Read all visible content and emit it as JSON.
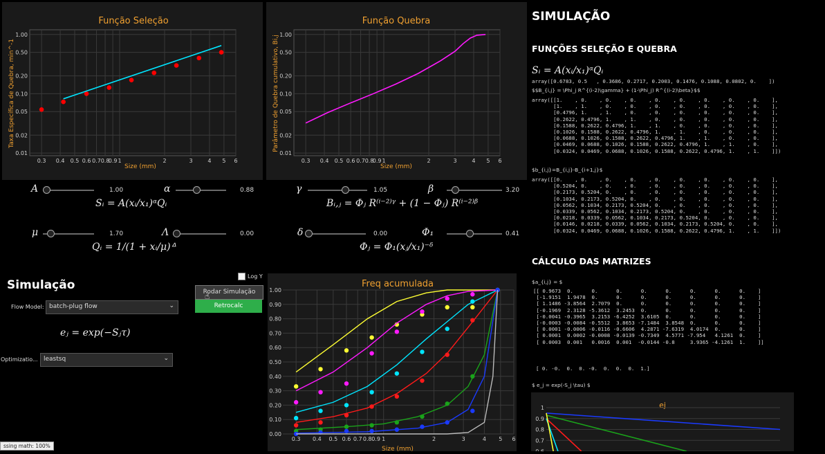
{
  "selection_panel": {
    "title": "Função Seleção",
    "xlabel": "Size (mm)",
    "ylabel": "Taxa Específica de Quebra, min^-1"
  },
  "breakage_panel": {
    "title": "Função Quebra",
    "xlabel": "Size (mm)",
    "ylabel": "Parâmetro de Quebra cumulativo, Bi,j"
  },
  "log_ticks_x": [
    "0.3",
    "0.4",
    "0.5",
    "0.6",
    "0.7",
    "0.8",
    "0.9",
    "1",
    "2",
    "3",
    "4",
    "5",
    "6"
  ],
  "log_ticks_y": [
    "1.00",
    "0.50",
    "0.20",
    "0.10",
    "0.05",
    "0.02",
    "0.01"
  ],
  "sliders": [
    {
      "label": "A",
      "value": "1.00",
      "pos": 0.0
    },
    {
      "label": "α",
      "value": "0.88",
      "pos": 0.4
    },
    {
      "label": "γ",
      "value": "1.05",
      "pos": 0.65
    },
    {
      "label": "β",
      "value": "3.20",
      "pos": 0.1
    },
    {
      "label": "μ",
      "value": "1.70",
      "pos": 0.1
    },
    {
      "label": "Λ",
      "value": "0.00",
      "pos": 0.0
    },
    {
      "label": "δ",
      "value": "0.00",
      "pos": 0.0
    },
    {
      "label": "Φ₁",
      "value": "0.41",
      "pos": 0.4
    }
  ],
  "formulas": {
    "s_i": "Sᵢ = A(xᵢ/x₁)ᵅQᵢ",
    "b_ij": "Bᵢ,ⱼ = Φⱼ R⁽ⁱ⁻²⁾ᵞ + (1 − Φⱼ) R⁽ⁱ⁻²⁾ᵝ",
    "q_i": "Qᵢ = 1/(1 + xᵢ/μ)ᐞ",
    "phi_j": "Φⱼ = Φ₁(xⱼ/x₁)⁻ᵟ",
    "e_j": "eⱼ = exp(−Sⱼτ)"
  },
  "simulation": {
    "title": "Simulação",
    "logy_label": "Log Y",
    "run_button": "Rodar Simulação",
    "retro_button": "Retrocalc",
    "flow_label": "Flow Model:",
    "flow_value": "batch-plug flow",
    "opt_label": "Optimizatio...",
    "opt_value": "leastsq",
    "status": "ssing math: 100%"
  },
  "freq_panel": {
    "title": "Freq acumulada",
    "xlabel": "Size (mm)",
    "yticks": [
      "1.00",
      "0.90",
      "0.80",
      "0.70",
      "0.60",
      "0.50",
      "0.40",
      "0.30",
      "0.20",
      "0.10",
      "0.00"
    ]
  },
  "right": {
    "h1": "SIMULAÇÃO",
    "h2": "FUNÇÕES SELEÇÃO E QUEBRA",
    "s_formula": "Sᵢ = A(xᵢ/x₁)ᵅQᵢ",
    "s_array": "array([0.6783, 0.5   , 0.3686, 0.2717, 0.2003, 0.1476, 0.1088, 0.0802, 0.    ])",
    "b_latex": "$$B_{i,j} = \\Phi_j R^{(i-2)\\gamma} + (1-\\Phi_j) R^{(i-2)\\beta}$$",
    "b_array": "array([[1.    , 0.    , 0.    , 0.    , 0.    , 0.    , 0.    , 0.    , 0.    ],\n       [1.    , 1.    , 0.    , 0.    , 0.    , 0.    , 0.    , 0.    , 0.    ],\n       [0.4796, 1.    , 1.    , 0.    , 0.    , 0.    , 0.    , 0.    , 0.    ],\n       [0.2622, 0.4796, 1.    , 1.    , 0.    , 0.    , 0.    , 0.    , 0.    ],\n       [0.1588, 0.2622, 0.4796, 1.    , 1.    , 0.    , 0.    , 0.    , 0.    ],\n       [0.1026, 0.1588, 0.2622, 0.4796, 1.    , 1.    , 0.    , 0.    , 0.    ],\n       [0.0688, 0.1026, 0.1588, 0.2622, 0.4796, 1.    , 1.    , 0.    , 0.    ],\n       [0.0469, 0.0688, 0.1026, 0.1588, 0.2622, 0.4796, 1.    , 1.    , 0.    ],\n       [0.0324, 0.0469, 0.0688, 0.1026, 0.1588, 0.2622, 0.4796, 1.    , 1.    ]])",
    "bb_latex": "$b_{i,j}=B_{i,j}-B_{i+1,j}$",
    "bb_array": "array([[0.    , 0.    , 0.    , 0.    , 0.    , 0.    , 0.    , 0.    , 0.    ],\n       [0.5204, 0.    , 0.    , 0.    , 0.    , 0.    , 0.    , 0.    , 0.    ],\n       [0.2173, 0.5204, 0.    , 0.    , 0.    , 0.    , 0.    , 0.    , 0.    ],\n       [0.1034, 0.2173, 0.5204, 0.    , 0.    , 0.    , 0.    , 0.    , 0.    ],\n       [0.0562, 0.1034, 0.2173, 0.5204, 0.    , 0.    , 0.    , 0.    , 0.    ],\n       [0.0339, 0.0562, 0.1034, 0.2173, 0.5204, 0.    , 0.    , 0.    , 0.    ],\n       [0.0218, 0.0339, 0.0562, 0.1034, 0.2173, 0.5204, 0.    , 0.    , 0.    ],\n       [0.0146, 0.0218, 0.0339, 0.0562, 0.1034, 0.2173, 0.5204, 0.    , 0.    ],\n       [0.0324, 0.0469, 0.0688, 0.1026, 0.1588, 0.2622, 0.4796, 1.    , 1.    ]])",
    "h3": "CÁLCULO DAS MATRIZES",
    "a_latex": "$a_{i,j} = $",
    "a_array": "[[ 0.9673  0.      0.      0.      0.      0.      0.      0.      0.    ]\n [-1.9151  1.9478  0.      0.      0.      0.      0.      0.      0.    ]\n [ 1.1486 -3.8564  2.7079  0.      0.      0.      0.      0.      0.    ]\n [-0.1969  2.3128 -5.3612  3.2453  0.      0.      0.      0.      0.    ]\n [-0.0041 -0.3965  3.2153 -6.4252  3.6105  0.      0.      0.      0.    ]\n [-0.0003 -0.0084 -0.5512  3.8653 -7.1484  3.8548  0.      0.      0.    ]\n [ 0.0001 -0.0006 -0.0116 -0.6606  4.2871 -7.6319  4.0174  0.      0.    ]\n [ 0.0001  0.0002 -0.0008 -0.0139 -0.7349  4.5771 -7.954   4.1261  0.    ]\n [ 0.0003  0.001   0.0016  0.001  -0.0144 -0.8     3.9365 -4.1261  1.    ]]",
    "zeros_row": "[ 0. -0.  0.  0. -0.  0.  0.  0.  1.]",
    "e_latex": "$ e_j = exp(-S_j \\tau) $",
    "ej_title": "ej",
    "ej_yticks": [
      "1",
      "0.9",
      "0.8",
      "0.7",
      "0.6"
    ]
  },
  "chart_data": [
    {
      "type": "scatter",
      "title": "Função Seleção",
      "xlabel": "Size (mm)",
      "ylabel": "Taxa Específica de Quebra, min^-1",
      "xscale": "log",
      "yscale": "log",
      "xlim": [
        0.25,
        6
      ],
      "ylim": [
        0.009,
        1.2
      ],
      "series": [
        {
          "kind": "points",
          "color": "#ff0000",
          "x": [
            0.3,
            0.42,
            0.6,
            0.85,
            1.2,
            1.7,
            2.4,
            3.4,
            4.8
          ],
          "y": [
            0.054,
            0.073,
            0.1,
            0.127,
            0.17,
            0.225,
            0.3,
            0.4,
            0.5
          ]
        },
        {
          "kind": "line",
          "color": "#00e5ff",
          "x": [
            0.42,
            4.8
          ],
          "y": [
            0.082,
            0.65
          ]
        }
      ]
    },
    {
      "type": "line",
      "title": "Função Quebra",
      "xlabel": "Size (mm)",
      "ylabel": "Parâmetro de Quebra cumulativo, Bi,j",
      "xscale": "log",
      "yscale": "log",
      "xlim": [
        0.25,
        6
      ],
      "ylim": [
        0.009,
        1.2
      ],
      "series": [
        {
          "kind": "line",
          "color": "#ff1aff",
          "x": [
            0.3,
            0.42,
            0.6,
            0.85,
            1.2,
            1.7,
            2.4,
            3.0,
            3.4,
            3.8,
            4.2,
            4.8
          ],
          "y": [
            0.032,
            0.048,
            0.07,
            0.1,
            0.145,
            0.22,
            0.36,
            0.52,
            0.7,
            0.87,
            0.97,
            1.0
          ]
        }
      ]
    },
    {
      "type": "line",
      "title": "Freq acumulada",
      "xlabel": "Size (mm)",
      "xscale": "log",
      "xlim": [
        0.25,
        6
      ],
      "ylim": [
        0,
        1
      ],
      "series": [
        {
          "color": "#ffff33",
          "px": [
            0.3,
            0.42,
            0.6,
            0.85,
            1.2,
            1.7,
            2.4,
            3.4,
            4.8
          ],
          "py": [
            0.33,
            0.45,
            0.58,
            0.67,
            0.76,
            0.83,
            0.88,
            0.88,
            1.0
          ],
          "lx": [
            0.3,
            0.5,
            0.8,
            1.2,
            1.8,
            2.4,
            3.2,
            4.8
          ],
          "ly": [
            0.43,
            0.62,
            0.8,
            0.92,
            0.98,
            1.0,
            1.0,
            1.0
          ]
        },
        {
          "color": "#ff1aff",
          "px": [
            0.3,
            0.42,
            0.6,
            0.85,
            1.2,
            1.7,
            2.4,
            3.4,
            4.8
          ],
          "py": [
            0.22,
            0.29,
            0.35,
            0.56,
            0.71,
            0.85,
            0.94,
            0.97,
            1.0
          ],
          "lx": [
            0.3,
            0.5,
            0.8,
            1.2,
            1.8,
            2.4,
            3.2,
            4.8
          ],
          "ly": [
            0.3,
            0.43,
            0.6,
            0.77,
            0.9,
            0.96,
            0.99,
            1.0
          ]
        },
        {
          "color": "#00e5ff",
          "px": [
            0.3,
            0.42,
            0.6,
            0.85,
            1.2,
            1.7,
            2.4,
            3.4,
            4.8
          ],
          "py": [
            0.11,
            0.16,
            0.2,
            0.29,
            0.42,
            0.57,
            0.73,
            0.92,
            1.0
          ],
          "lx": [
            0.3,
            0.5,
            0.8,
            1.2,
            1.8,
            2.4,
            3.2,
            4.8
          ],
          "ly": [
            0.15,
            0.22,
            0.33,
            0.48,
            0.66,
            0.78,
            0.9,
            1.0
          ]
        },
        {
          "color": "#ff1a1a",
          "px": [
            0.3,
            0.42,
            0.6,
            0.85,
            1.2,
            1.7,
            2.4,
            3.4,
            4.8
          ],
          "py": [
            0.06,
            0.08,
            0.13,
            0.19,
            0.26,
            0.37,
            0.55,
            0.79,
            1.0
          ],
          "lx": [
            0.3,
            0.5,
            0.8,
            1.2,
            1.8,
            2.4,
            3.2,
            4.8
          ],
          "ly": [
            0.08,
            0.12,
            0.18,
            0.28,
            0.42,
            0.56,
            0.74,
            1.0
          ]
        },
        {
          "color": "#1aa31a",
          "px": [
            0.3,
            0.42,
            0.6,
            0.85,
            1.2,
            1.7,
            2.4,
            3.4,
            4.8
          ],
          "py": [
            0.02,
            0.03,
            0.05,
            0.06,
            0.08,
            0.12,
            0.21,
            0.4,
            1.0
          ],
          "lx": [
            0.3,
            0.6,
            1.0,
            1.6,
            2.4,
            3.2,
            4.0,
            4.8
          ],
          "ly": [
            0.03,
            0.05,
            0.07,
            0.12,
            0.2,
            0.33,
            0.55,
            1.0
          ]
        },
        {
          "color": "#1a3aff",
          "px": [
            0.3,
            0.42,
            0.6,
            0.85,
            1.2,
            1.7,
            2.4,
            3.4,
            4.8
          ],
          "py": [
            0.0,
            0.01,
            0.02,
            0.02,
            0.03,
            0.05,
            0.08,
            0.16,
            1.0
          ],
          "lx": [
            0.3,
            0.8,
            1.6,
            2.4,
            3.2,
            4.0,
            4.8
          ],
          "ly": [
            0.005,
            0.015,
            0.04,
            0.08,
            0.17,
            0.4,
            1.0
          ]
        },
        {
          "color": "#bbbbbb",
          "px": [],
          "py": [],
          "lx": [
            0.3,
            1.2,
            2.4,
            3.2,
            4.0,
            4.5,
            4.8
          ],
          "ly": [
            0.0,
            0.0,
            0.0,
            0.01,
            0.08,
            0.4,
            1.0
          ]
        }
      ]
    },
    {
      "type": "line",
      "title": "ej",
      "series": [
        {
          "color": "#1a3aff",
          "x": [
            0,
            1
          ],
          "y": [
            0.95,
            0.8
          ]
        },
        {
          "color": "#1aa31a",
          "x": [
            0,
            0.6
          ],
          "y": [
            0.93,
            0.6
          ]
        },
        {
          "color": "#ff1a1a",
          "x": [
            0,
            0.15
          ],
          "y": [
            0.9,
            0.6
          ]
        },
        {
          "color": "#00e5ff",
          "x": [
            0,
            0.05
          ],
          "y": [
            0.9,
            0.6
          ]
        },
        {
          "color": "#ffff33",
          "x": [
            0,
            0.03
          ],
          "y": [
            0.95,
            0.6
          ]
        }
      ]
    }
  ]
}
